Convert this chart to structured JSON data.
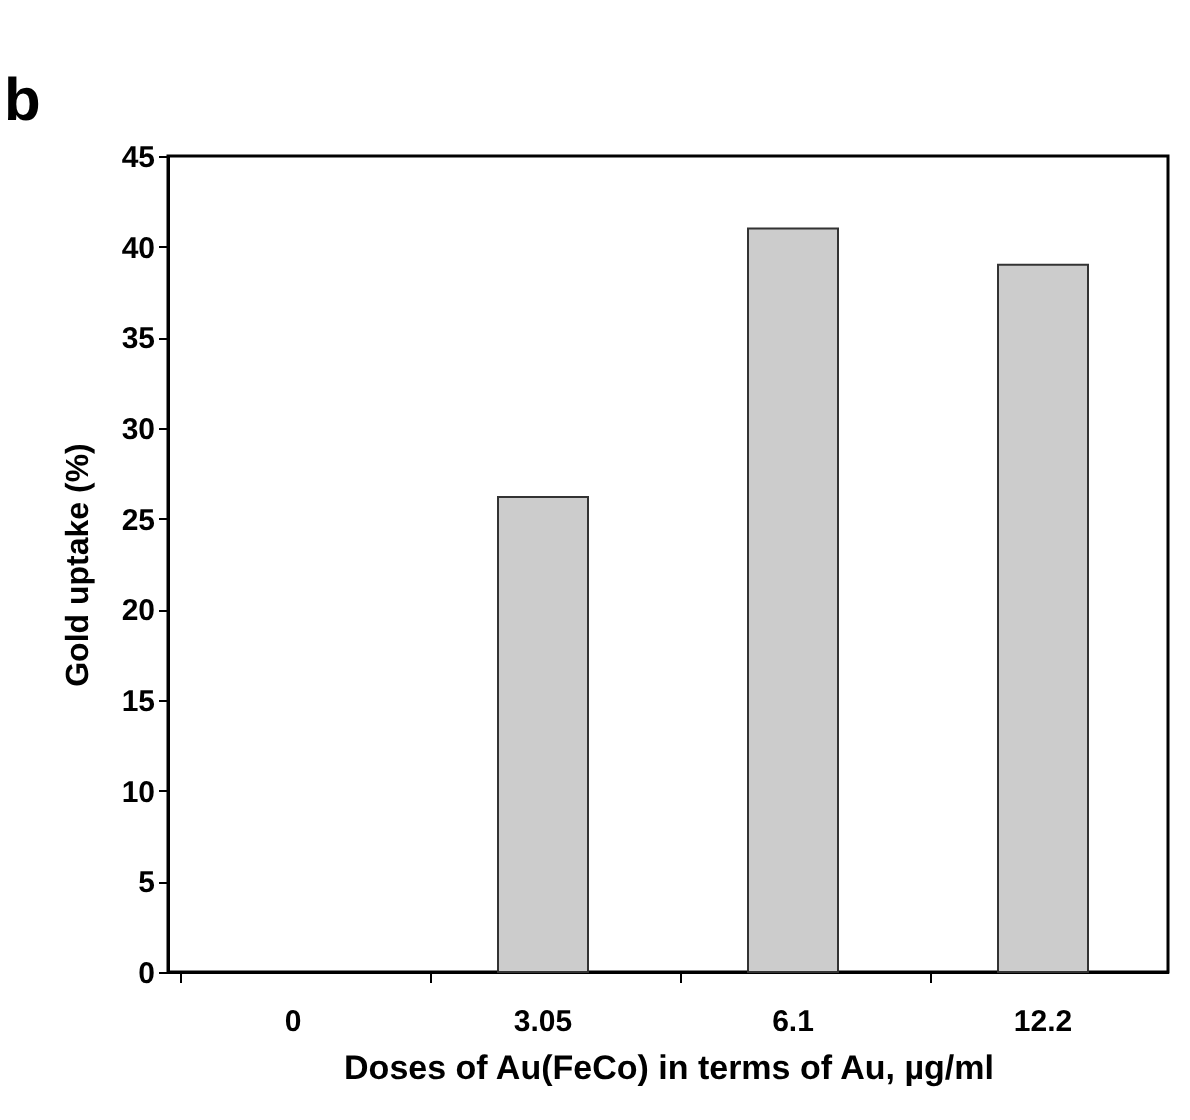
{
  "chart_data": {
    "type": "bar",
    "categories": [
      "0",
      "3.05",
      "6.1",
      "12.2"
    ],
    "values": [
      0,
      26.2,
      41,
      39
    ],
    "color": "#cccccc",
    "ylim": [
      0,
      45
    ],
    "yticks": [
      0,
      5,
      10,
      15,
      20,
      25,
      30,
      35,
      40,
      45
    ],
    "grid": false,
    "xlabel": "Doses of Au(FeCo) in terms of Au, µg/ml",
    "ylabel": "Gold uptake (%)",
    "annotations": [
      "b"
    ]
  }
}
